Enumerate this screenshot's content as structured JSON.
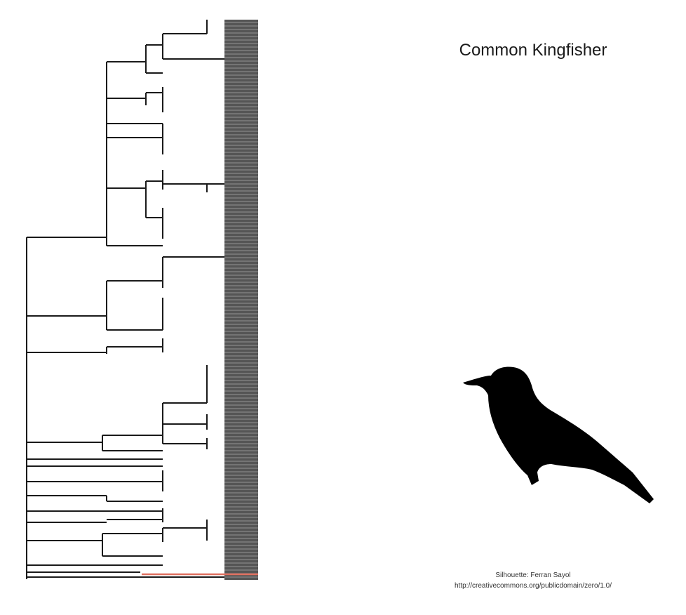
{
  "species_title": "Common Kingfisher",
  "silhouette_icon": "bird-silhouette-icon",
  "credit": {
    "author_line": "Silhouette: Ferran Sayol",
    "license_line": "http://creativecommons.org/publicdomain/zero/1.0/"
  },
  "colors": {
    "branch": "#1a1a1a",
    "tip_band": "#555555",
    "highlight_branch": "#e07060",
    "silhouette": "#000000"
  }
}
